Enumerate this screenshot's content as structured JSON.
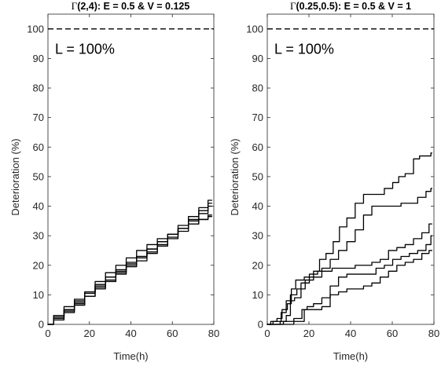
{
  "chart_data": [
    {
      "type": "line",
      "title_symbol": "Γ",
      "title_rest": "(2,4): E = 0.5 & V = 0.125",
      "xlabel": "Time(h)",
      "ylabel": "Deterioration (%)",
      "xlim": [
        0,
        80
      ],
      "ylim": [
        0,
        105
      ],
      "xticks": [
        0,
        20,
        40,
        60,
        80
      ],
      "yticks": [
        0,
        10,
        20,
        30,
        40,
        50,
        60,
        70,
        80,
        90,
        100
      ],
      "xtick_labels": [
        "0",
        "20",
        "40",
        "60",
        "80"
      ],
      "ytick_labels": [
        "0",
        "10",
        "20",
        "30",
        "40",
        "50",
        "60",
        "70",
        "80",
        "90",
        "100"
      ],
      "grid": false,
      "limit_line": 100,
      "annotation": "L = 100%",
      "line_color": "#000000",
      "series": [
        {
          "x": [
            0,
            5,
            10,
            15,
            20,
            25,
            30,
            35,
            40,
            45,
            50,
            55,
            60,
            65,
            70,
            75,
            79
          ],
          "y": [
            0,
            2.5,
            5,
            7.5,
            10.5,
            13,
            16,
            18.5,
            21,
            23,
            25.5,
            28,
            30.5,
            33.5,
            36.5,
            39.5,
            42
          ]
        },
        {
          "x": [
            0,
            5,
            10,
            15,
            20,
            25,
            30,
            35,
            40,
            45,
            50,
            55,
            60,
            65,
            70,
            75,
            79
          ],
          "y": [
            0,
            2,
            4.5,
            8,
            11,
            13.5,
            16,
            18,
            20.5,
            23,
            25.5,
            28,
            30.5,
            32.5,
            35,
            37.5,
            40
          ]
        },
        {
          "x": [
            0,
            5,
            10,
            15,
            20,
            25,
            30,
            35,
            40,
            45,
            50,
            55,
            60,
            65,
            70,
            75,
            79
          ],
          "y": [
            0,
            3,
            6,
            8.5,
            11,
            14.5,
            17.5,
            20,
            22.5,
            25,
            27,
            29,
            30.5,
            32.5,
            34,
            35.5,
            37
          ]
        },
        {
          "x": [
            0,
            5,
            10,
            15,
            20,
            25,
            30,
            35,
            40,
            45,
            50,
            55,
            60,
            65,
            70,
            75,
            79
          ],
          "y": [
            0,
            1.5,
            4,
            6.5,
            9.5,
            12.5,
            15,
            17.5,
            19.5,
            21.5,
            24,
            26.5,
            29,
            31.5,
            34,
            35.5,
            36.5
          ]
        },
        {
          "x": [
            0,
            5,
            10,
            15,
            20,
            25,
            30,
            35,
            40,
            45,
            50,
            55,
            60,
            65,
            70,
            75,
            79
          ],
          "y": [
            0,
            2.5,
            5,
            7,
            9.5,
            12,
            14.5,
            17,
            20,
            22.5,
            24.5,
            27,
            29.5,
            32.5,
            35.5,
            38.5,
            41
          ]
        }
      ]
    },
    {
      "type": "line",
      "title_symbol": "Γ",
      "title_rest": "(0.25,0.5): E = 0.5 & V = 1",
      "xlabel": "Time(h)",
      "ylabel": "Deterioration (%)",
      "xlim": [
        0,
        80
      ],
      "ylim": [
        0,
        105
      ],
      "xticks": [
        0,
        20,
        40,
        60,
        80
      ],
      "yticks": [
        0,
        10,
        20,
        30,
        40,
        50,
        60,
        70,
        80,
        90,
        100
      ],
      "xtick_labels": [
        "0",
        "20",
        "40",
        "60",
        "80"
      ],
      "ytick_labels": [
        "0",
        "10",
        "20",
        "30",
        "40",
        "50",
        "60",
        "70",
        "80",
        "90",
        "100"
      ],
      "grid": false,
      "limit_line": 100,
      "annotation": "L = 100%",
      "line_color": "#000000",
      "series": [
        {
          "x": [
            0,
            3,
            6,
            8,
            11,
            12,
            15,
            20,
            24,
            26,
            30,
            33,
            36,
            40,
            44,
            48,
            50,
            54,
            58,
            62,
            64,
            68,
            72,
            74,
            78,
            79
          ],
          "y": [
            0,
            1,
            2,
            5,
            7,
            12,
            15,
            16,
            18,
            22,
            24,
            28,
            33,
            36,
            41,
            44,
            44,
            44,
            46,
            48,
            50,
            51,
            56,
            57,
            57,
            58
          ]
        },
        {
          "x": [
            0,
            5,
            8,
            10,
            12,
            16,
            20,
            24,
            28,
            32,
            36,
            40,
            44,
            48,
            52,
            56,
            60,
            62,
            66,
            70,
            74,
            78,
            79
          ],
          "y": [
            0,
            1,
            4,
            8,
            10,
            12,
            15,
            16,
            19,
            22,
            25,
            28,
            32,
            37,
            40,
            40,
            40,
            40,
            41,
            41,
            43,
            45,
            46
          ]
        },
        {
          "x": [
            0,
            4,
            8,
            10,
            12,
            14,
            18,
            22,
            26,
            30,
            32,
            36,
            40,
            44,
            48,
            52,
            56,
            60,
            64,
            68,
            72,
            76,
            79
          ],
          "y": [
            0,
            0,
            1,
            3,
            8,
            9,
            14,
            17,
            18,
            18,
            19,
            19,
            19,
            20,
            20,
            21,
            22,
            25,
            26,
            27,
            29,
            31,
            34
          ]
        },
        {
          "x": [
            0,
            5,
            10,
            15,
            18,
            20,
            24,
            28,
            32,
            36,
            40,
            44,
            48,
            50,
            54,
            58,
            62,
            66,
            70,
            74,
            78,
            79
          ],
          "y": [
            0,
            0,
            1,
            2,
            5,
            6,
            7,
            9,
            13,
            16,
            17,
            17,
            17,
            17,
            19,
            20,
            22,
            23,
            24,
            25,
            27,
            30
          ]
        },
        {
          "x": [
            0,
            5,
            10,
            15,
            20,
            24,
            28,
            32,
            36,
            40,
            44,
            48,
            52,
            56,
            60,
            64,
            68,
            72,
            76,
            79
          ],
          "y": [
            0,
            0,
            0,
            1,
            5,
            5,
            6,
            10,
            11,
            12,
            12,
            13,
            14,
            16,
            18,
            20,
            21,
            22,
            24,
            25
          ]
        }
      ]
    }
  ]
}
